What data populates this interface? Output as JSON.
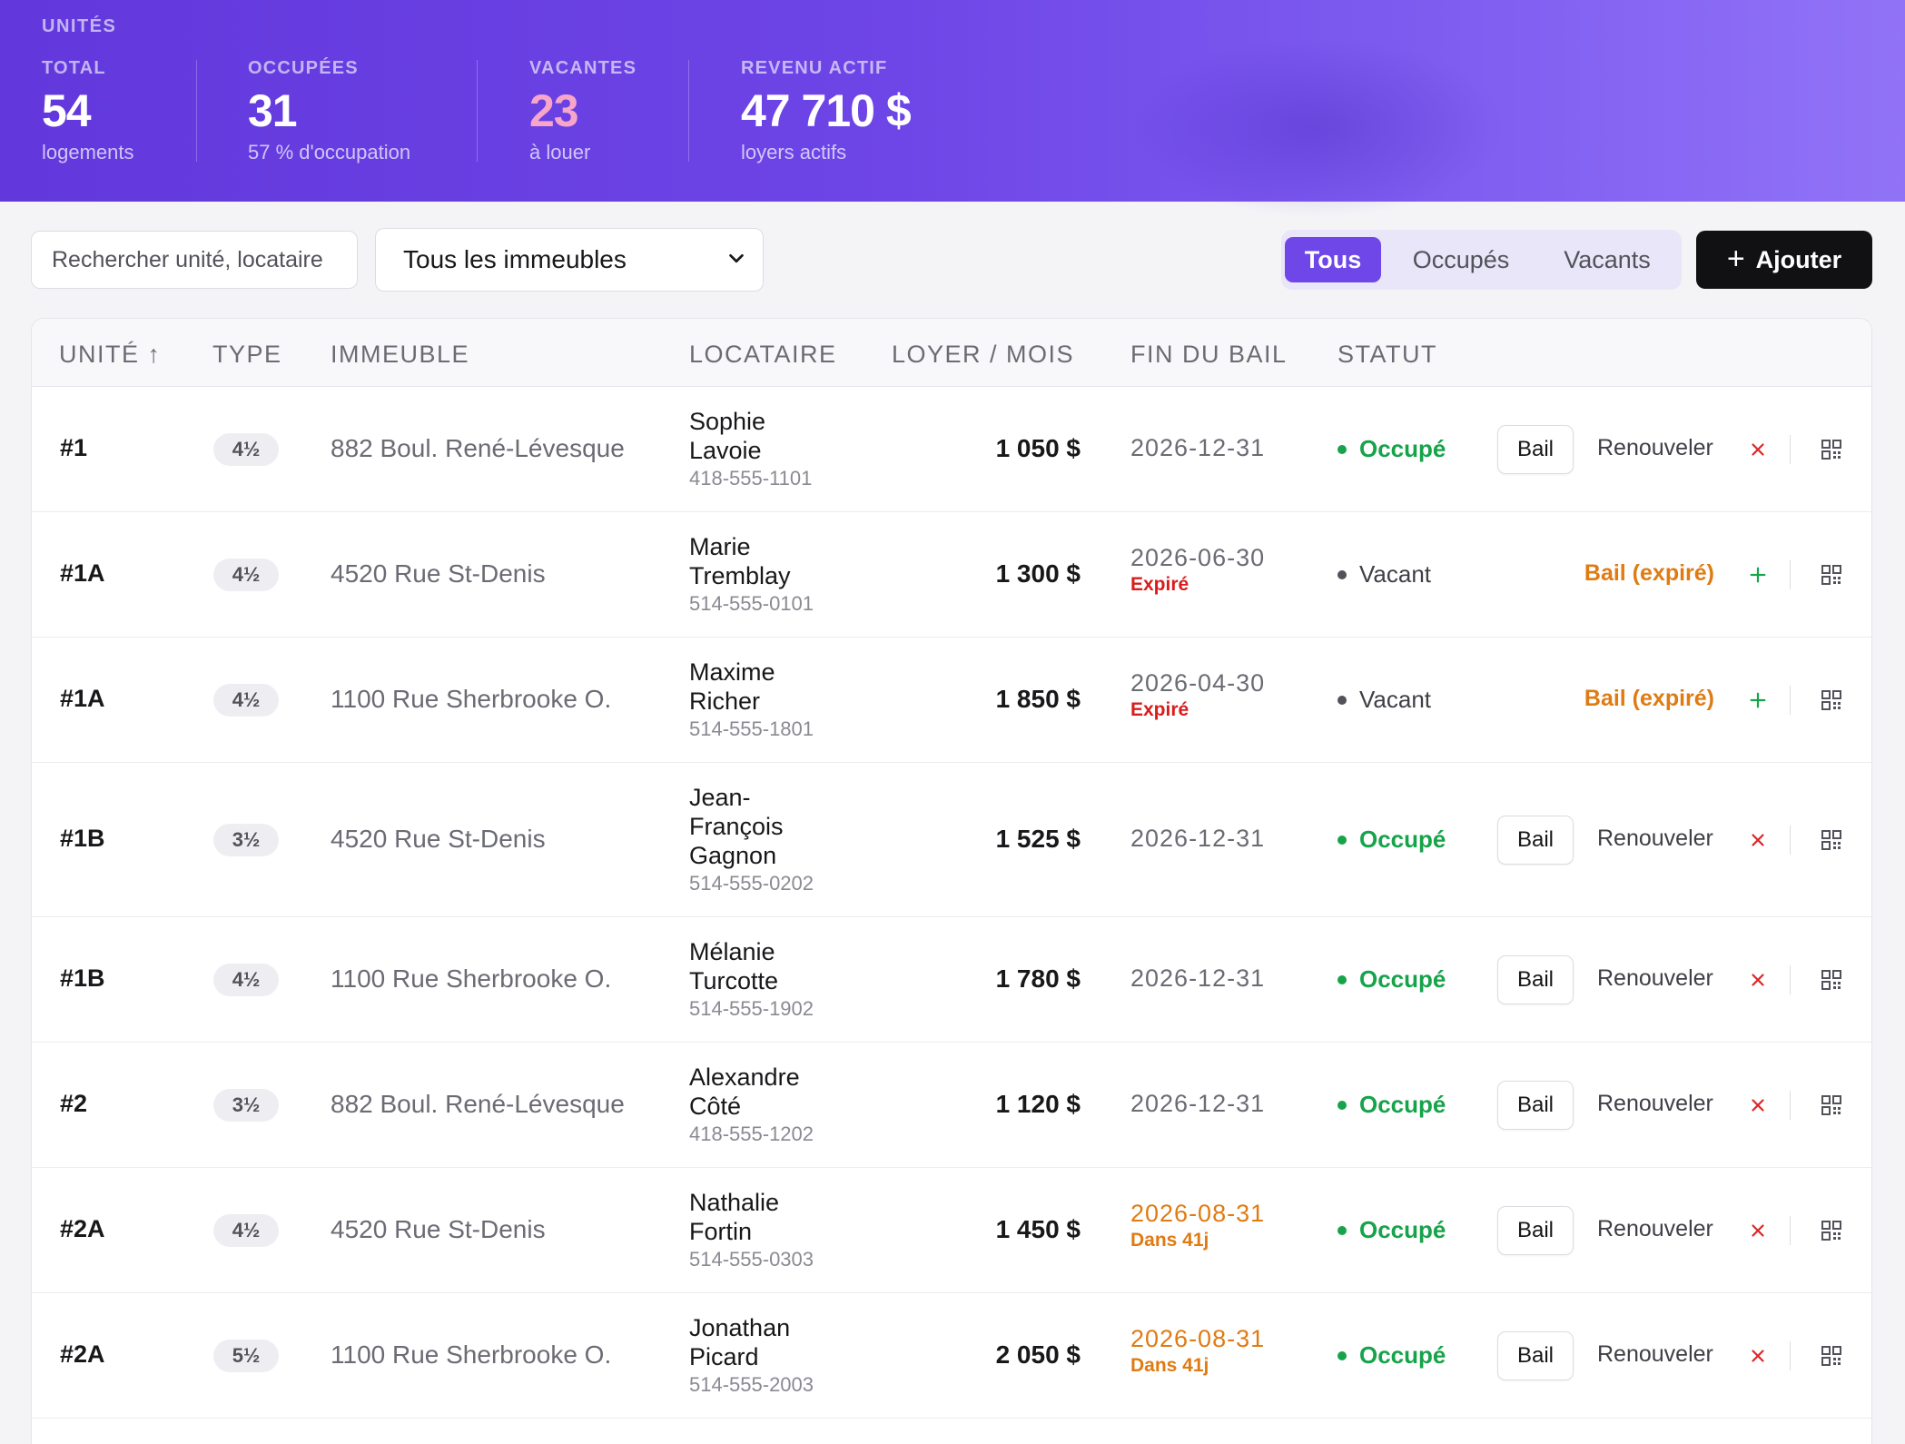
{
  "header": {
    "section_title": "UNITÉS",
    "stats": [
      {
        "label": "TOTAL",
        "value": "54",
        "sub": "logements"
      },
      {
        "label": "OCCUPÉES",
        "value": "31",
        "sub": "57 % d'occupation"
      },
      {
        "label": "VACANTES",
        "value": "23",
        "sub": "à louer"
      },
      {
        "label": "REVENU ACTIF",
        "value": "47 710 $",
        "sub": "loyers actifs"
      }
    ]
  },
  "toolbar": {
    "search_placeholder": "Rechercher unité, locataire",
    "building_filter": "Tous les immeubles",
    "segments": [
      "Tous",
      "Occupés",
      "Vacants"
    ],
    "active_segment": "Tous",
    "add_label": "Ajouter"
  },
  "table": {
    "columns": [
      "UNITÉ ↑",
      "TYPE",
      "IMMEUBLE",
      "LOCATAIRE",
      "LOYER / MOIS",
      "FIN DU BAIL",
      "STATUT"
    ],
    "action_labels": {
      "lease": "Bail",
      "renew": "Renouveler",
      "expired_lease": "Bail (expiré)"
    },
    "rows": [
      {
        "unit": "#1",
        "type": "4½",
        "building": "882 Boul. René-Lévesque",
        "tenant_lines": [
          "Sophie",
          "Lavoie"
        ],
        "phone": "418-555-1101",
        "rent": "1 050 $",
        "lease_end": "2026-12-31",
        "lease_note": "",
        "status": "Occupé"
      },
      {
        "unit": "#1A",
        "type": "4½",
        "building": "4520 Rue St-Denis",
        "tenant_lines": [
          "Marie",
          "Tremblay"
        ],
        "phone": "514-555-0101",
        "rent": "1 300 $",
        "lease_end": "2026-06-30",
        "lease_note": "Expiré",
        "status": "Vacant"
      },
      {
        "unit": "#1A",
        "type": "4½",
        "building": "1100 Rue Sherbrooke O.",
        "tenant_lines": [
          "Maxime",
          "Richer"
        ],
        "phone": "514-555-1801",
        "rent": "1 850 $",
        "lease_end": "2026-04-30",
        "lease_note": "Expiré",
        "status": "Vacant"
      },
      {
        "unit": "#1B",
        "type": "3½",
        "building": "4520 Rue St-Denis",
        "tenant_lines": [
          "Jean-",
          "François",
          "Gagnon"
        ],
        "phone": "514-555-0202",
        "rent": "1 525 $",
        "lease_end": "2026-12-31",
        "lease_note": "",
        "status": "Occupé"
      },
      {
        "unit": "#1B",
        "type": "4½",
        "building": "1100 Rue Sherbrooke O.",
        "tenant_lines": [
          "Mélanie",
          "Turcotte"
        ],
        "phone": "514-555-1902",
        "rent": "1 780 $",
        "lease_end": "2026-12-31",
        "lease_note": "",
        "status": "Occupé"
      },
      {
        "unit": "#2",
        "type": "3½",
        "building": "882 Boul. René-Lévesque",
        "tenant_lines": [
          "Alexandre",
          "Côté"
        ],
        "phone": "418-555-1202",
        "rent": "1 120 $",
        "lease_end": "2026-12-31",
        "lease_note": "",
        "status": "Occupé"
      },
      {
        "unit": "#2A",
        "type": "4½",
        "building": "4520 Rue St-Denis",
        "tenant_lines": [
          "Nathalie",
          "Fortin"
        ],
        "phone": "514-555-0303",
        "rent": "1 450 $",
        "lease_end": "2026-08-31",
        "lease_note": "Dans 41j",
        "status": "Occupé"
      },
      {
        "unit": "#2A",
        "type": "5½",
        "building": "1100 Rue Sherbrooke O.",
        "tenant_lines": [
          "Jonathan",
          "Picard"
        ],
        "phone": "514-555-2003",
        "rent": "2 050 $",
        "lease_end": "2026-08-31",
        "lease_note": "Dans 41j",
        "status": "Occupé"
      }
    ]
  },
  "colors": {
    "accent": "#6f46e8",
    "occupied": "#16a34a",
    "expired": "#d91c1c",
    "soon": "#e07b12"
  },
  "icons": {
    "sort": "arrow-up-icon",
    "terminate": "close-icon",
    "add_lease": "plus-icon",
    "qr": "qr-code-icon",
    "dropdown": "chevron-down-icon"
  }
}
